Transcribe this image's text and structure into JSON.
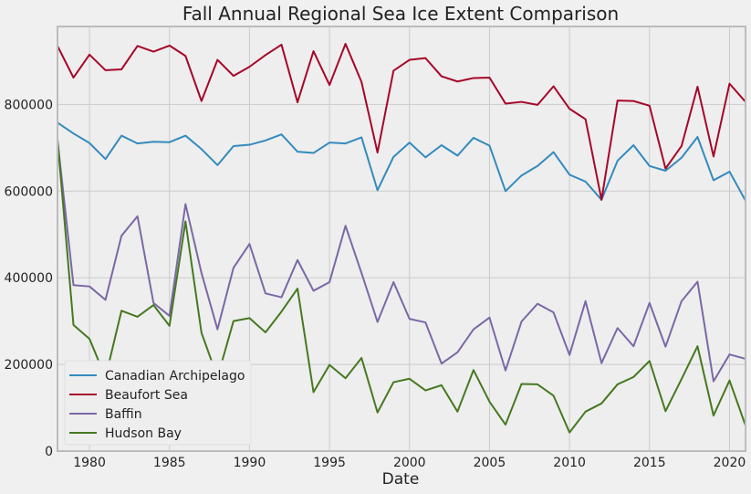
{
  "chart_data": {
    "type": "line",
    "title": "Fall Annual Regional Sea Ice Extent Comparison",
    "xlabel": "Date",
    "ylabel": "",
    "xlim": [
      1978,
      2021
    ],
    "ylim": [
      0,
      980000
    ],
    "xticks": [
      1980,
      1985,
      1990,
      1995,
      2000,
      2005,
      2010,
      2015,
      2020
    ],
    "yticks": [
      0,
      200000,
      400000,
      600000,
      800000
    ],
    "grid": true,
    "legend_position": "bottom-left",
    "x": [
      1978,
      1979,
      1980,
      1981,
      1982,
      1983,
      1984,
      1985,
      1986,
      1987,
      1988,
      1989,
      1990,
      1991,
      1992,
      1993,
      1994,
      1995,
      1996,
      1997,
      1998,
      1999,
      2000,
      2001,
      2002,
      2003,
      2004,
      2005,
      2006,
      2007,
      2008,
      2009,
      2010,
      2011,
      2012,
      2013,
      2014,
      2015,
      2016,
      2017,
      2018,
      2019,
      2020,
      2021
    ],
    "series": [
      {
        "name": "Canadian Archipelago",
        "color": "#348ABD",
        "values": [
          758000,
          733000,
          711000,
          674000,
          728000,
          710000,
          714000,
          713000,
          728000,
          697000,
          660000,
          704000,
          707000,
          717000,
          731000,
          691000,
          688000,
          712000,
          710000,
          724000,
          602000,
          679000,
          712000,
          678000,
          706000,
          682000,
          723000,
          705000,
          600000,
          636000,
          658000,
          690000,
          638000,
          622000,
          580000,
          670000,
          706000,
          658000,
          647000,
          677000,
          725000,
          625000,
          645000,
          578000
        ]
      },
      {
        "name": "Beaufort Sea",
        "color": "#A60628",
        "values": [
          935000,
          862000,
          915000,
          879000,
          881000,
          935000,
          922000,
          936000,
          912000,
          808000,
          903000,
          866000,
          887000,
          914000,
          938000,
          805000,
          923000,
          845000,
          940000,
          852000,
          689000,
          878000,
          903000,
          907000,
          865000,
          853000,
          861000,
          862000,
          802000,
          806000,
          799000,
          842000,
          790000,
          766000,
          580000,
          809000,
          808000,
          797000,
          652000,
          704000,
          841000,
          680000,
          848000,
          806000
        ]
      },
      {
        "name": "Baffin",
        "color": "#7A68A6",
        "values": [
          718000,
          383000,
          380000,
          349000,
          497000,
          542000,
          342000,
          312000,
          570000,
          411000,
          281000,
          423000,
          478000,
          364000,
          355000,
          441000,
          370000,
          390000,
          520000,
          411000,
          298000,
          390000,
          305000,
          297000,
          202000,
          228000,
          281000,
          308000,
          186000,
          299000,
          340000,
          320000,
          222000,
          346000,
          203000,
          284000,
          242000,
          342000,
          241000,
          346000,
          391000,
          161000,
          223000,
          213000
        ]
      },
      {
        "name": "Hudson Bay",
        "color": "#467821",
        "values": [
          720000,
          291000,
          259000,
          170000,
          324000,
          310000,
          337000,
          289000,
          530000,
          273000,
          170000,
          300000,
          307000,
          274000,
          322000,
          375000,
          136000,
          199000,
          168000,
          215000,
          89000,
          159000,
          167000,
          140000,
          152000,
          91000,
          187000,
          114000,
          61000,
          155000,
          154000,
          128000,
          43000,
          91000,
          110000,
          154000,
          171000,
          208000,
          92000,
          166000,
          242000,
          82000,
          163000,
          59000
        ]
      }
    ]
  }
}
